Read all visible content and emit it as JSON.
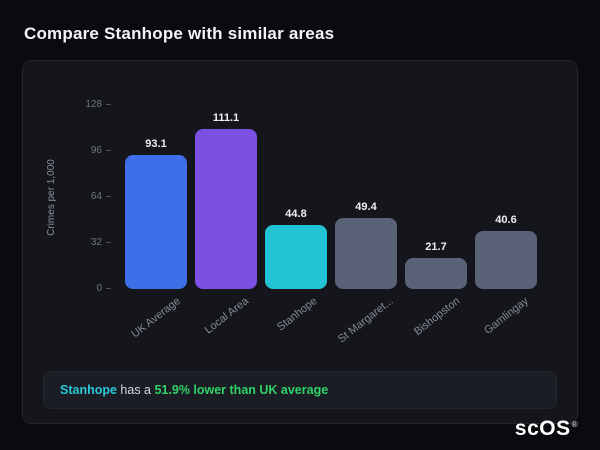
{
  "header": {
    "title": "Compare Stanhope with similar areas"
  },
  "chart_data": {
    "type": "bar",
    "categories": [
      "UK Average",
      "Local Area",
      "Stanhope",
      "St Margaret...",
      "Bishopston",
      "Gamlingay"
    ],
    "values": [
      93.1,
      111.1,
      44.8,
      49.4,
      21.7,
      40.6
    ],
    "value_labels": [
      "93.1",
      "111.1",
      "44.8",
      "49.4",
      "21.7",
      "40.6"
    ],
    "bar_colors": [
      "#3e6fe8",
      "#7d50e4",
      "#21c3d4",
      "#596276",
      "#596276",
      "#596276"
    ],
    "title": "",
    "xlabel": "",
    "ylabel": "Crimes per 1,000",
    "yticks": [
      0,
      32,
      64,
      96,
      128
    ],
    "ylim": [
      0,
      128
    ],
    "grid": false,
    "legend": false
  },
  "footer": {
    "area_name": "Stanhope",
    "middle_text": " has a ",
    "highlight_text": "51.9% lower than UK average",
    "area_color": "#2bc9d9",
    "highlight_color": "#30d268"
  },
  "logo": {
    "text": "scOS",
    "registered": "®"
  }
}
